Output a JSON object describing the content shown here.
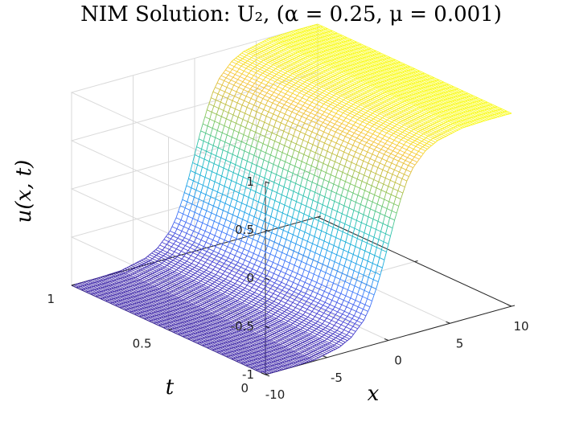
{
  "chart_data": {
    "type": "surface",
    "title": "NIM Solution: U₂, (α = 0.25, μ = 0.001)",
    "xlabel": "x",
    "ylabel": "t",
    "zlabel": "u(x, t)",
    "xlim": [
      -10,
      10
    ],
    "ylim": [
      0,
      1
    ],
    "zlim": [
      -1,
      1
    ],
    "x_ticks": [
      "-10",
      "-5",
      "0",
      "5",
      "10"
    ],
    "y_ticks": [
      "0",
      "0.5",
      "1"
    ],
    "z_ticks": [
      "-1",
      "-0.5",
      "0",
      "0.5",
      "1"
    ],
    "x_tick_values": [
      -10,
      -5,
      0,
      5,
      10
    ],
    "y_tick_values": [
      0,
      0.5,
      1
    ],
    "z_tick_values": [
      -1,
      -0.5,
      0,
      0.5,
      1
    ],
    "surface": {
      "description": "tanh-shaped front rising from -1 to 1 across x, uniform in t",
      "x_samples": [
        -10,
        -8,
        -6,
        -4,
        -3,
        -2,
        -1.5,
        -1,
        -0.5,
        0,
        0.5,
        1,
        1.5,
        2,
        3,
        4,
        6,
        8,
        10
      ],
      "u_profile": [
        -1,
        -1,
        -0.99,
        -0.93,
        -0.86,
        -0.72,
        -0.6,
        -0.43,
        -0.23,
        0,
        0.23,
        0.43,
        0.6,
        0.72,
        0.86,
        0.93,
        0.99,
        1,
        1
      ],
      "t_range": [
        0,
        1
      ]
    },
    "colormap": "parula",
    "colormap_stops": [
      "#3e26a8",
      "#4745d8",
      "#3f77fc",
      "#1c9cee",
      "#19b5d2",
      "#2fc3a9",
      "#74c86a",
      "#c4bd3e",
      "#f6c33a",
      "#f9fb15"
    ],
    "grid": true
  }
}
